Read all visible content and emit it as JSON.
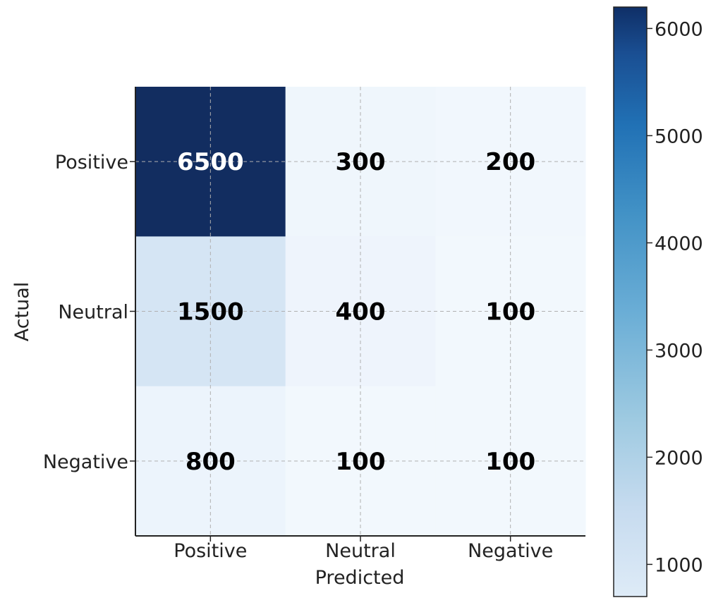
{
  "chart_data": {
    "type": "heatmap",
    "title": "",
    "xlabel": "Predicted",
    "ylabel": "Actual",
    "x_categories": [
      "Positive",
      "Neutral",
      "Negative"
    ],
    "y_categories": [
      "Positive",
      "Neutral",
      "Negative"
    ],
    "values": [
      [
        6500,
        300,
        200
      ],
      [
        1500,
        400,
        100
      ],
      [
        800,
        100,
        100
      ]
    ],
    "colormap": "Blues",
    "grid": true,
    "colorbar": {
      "ticks": [
        "1000",
        "2000",
        "3000",
        "4000",
        "5000",
        "6000"
      ],
      "range": [
        700,
        6200
      ],
      "placement": "right"
    },
    "colors": {
      "dark_text": "#000000",
      "light_text": "#ffffff",
      "grid": "#b0b0b0"
    }
  }
}
